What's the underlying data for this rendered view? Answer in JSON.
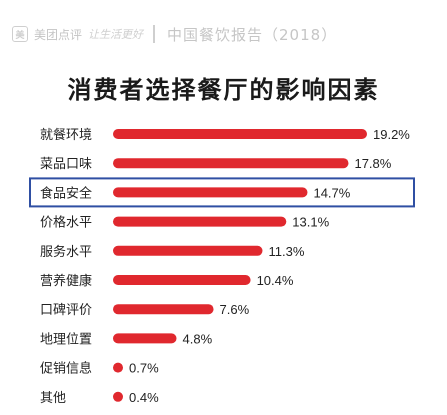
{
  "header": {
    "logo_mark": "美",
    "brand": "美团点评",
    "slogan": "让生活更好",
    "report": "中国餐饮报告（2018）"
  },
  "chart_data": {
    "type": "bar",
    "orientation": "horizontal",
    "title": "消费者选择餐厅的影响因素",
    "categories": [
      "就餐环境",
      "菜品口味",
      "食品安全",
      "价格水平",
      "服务水平",
      "营养健康",
      "口碑评价",
      "地理位置",
      "促销信息",
      "其他"
    ],
    "values": [
      19.2,
      17.8,
      14.7,
      13.1,
      11.3,
      10.4,
      7.6,
      4.8,
      0.7,
      0.4
    ],
    "labels": [
      "19.2%",
      "17.8%",
      "14.7%",
      "13.1%",
      "11.3%",
      "10.4%",
      "7.6%",
      "4.8%",
      "0.7%",
      "0.4%"
    ],
    "highlight_category": "食品安全",
    "xlim": [
      0,
      19.2
    ],
    "grid": false,
    "legend": "none",
    "bar_color": "#e0282e",
    "highlight_box_color": "#2f4fa3"
  }
}
